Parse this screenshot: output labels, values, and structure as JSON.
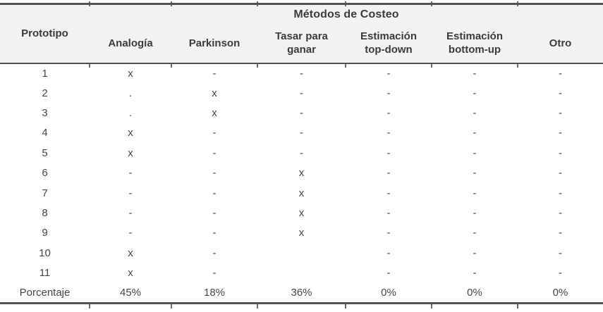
{
  "table": {
    "group_header": "Métodos de Costeo",
    "row_header": "Prototipo",
    "method_columns": [
      "Analogía",
      "Parkinson",
      "Tasar para\nganar",
      "Estimación\ntop-down",
      "Estimación\nbottom-up",
      "Otro"
    ],
    "rows": [
      {
        "prototype": "1",
        "cells": [
          "x",
          "-",
          "-",
          "-",
          "-",
          "-"
        ]
      },
      {
        "prototype": "2",
        "cells": [
          ".",
          "x",
          "-",
          "-",
          "-",
          "-"
        ]
      },
      {
        "prototype": "3",
        "cells": [
          ".",
          "x",
          "-",
          "-",
          "-",
          "-"
        ]
      },
      {
        "prototype": "4",
        "cells": [
          "x",
          "-",
          "-",
          "-",
          "-",
          "-"
        ]
      },
      {
        "prototype": "5",
        "cells": [
          "x",
          "-",
          "-",
          "-",
          "-",
          "-"
        ]
      },
      {
        "prototype": "6",
        "cells": [
          "-",
          "-",
          "x",
          "-",
          "-",
          "-"
        ]
      },
      {
        "prototype": "7",
        "cells": [
          "-",
          "-",
          "x",
          "-",
          "-",
          "-"
        ]
      },
      {
        "prototype": "8",
        "cells": [
          "-",
          "-",
          "x",
          "-",
          "-",
          "-"
        ]
      },
      {
        "prototype": "9",
        "cells": [
          "-",
          "-",
          "x",
          "-",
          "-",
          "-"
        ]
      },
      {
        "prototype": "10",
        "cells": [
          "x",
          "-",
          "",
          "-",
          "-",
          "-"
        ]
      },
      {
        "prototype": "11",
        "cells": [
          "x",
          "-",
          "",
          "-",
          "-",
          "-"
        ]
      }
    ],
    "footer": {
      "label": "Porcentaje",
      "cells": [
        "45%",
        "18%",
        "36%",
        "0%",
        "0%",
        "0%"
      ]
    }
  },
  "colors": {
    "rule": "#515257",
    "header_background": "#f2f2f3",
    "header_text": "#3a3b3f",
    "body_text": "#43464d"
  }
}
